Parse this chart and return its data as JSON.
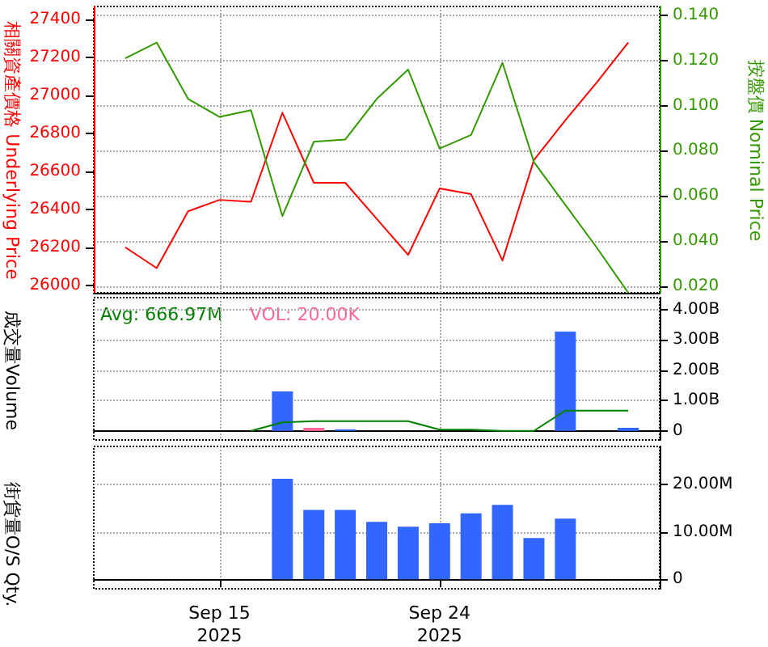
{
  "chart_data": [
    {
      "type": "line",
      "ylabel": "相關資產價格 Underlying Price",
      "y2label": "按盤價 Nominal Price",
      "categories": [
        null,
        null,
        null,
        null,
        null,
        null,
        null,
        null,
        null,
        null,
        null,
        null,
        null,
        null,
        null,
        null,
        null,
        null,
        null
      ],
      "series": [
        {
          "color": "#ff0000",
          "values": [
            null,
            26200,
            26090,
            26390,
            26450,
            26440,
            26910,
            26540,
            26540,
            26350,
            26160,
            26510,
            26480,
            26130,
            26660,
            26870,
            27070,
            27280,
            null
          ]
        },
        {
          "color": "#339900",
          "axis": "y2",
          "values": [
            null,
            0.121,
            0.128,
            0.103,
            0.095,
            0.098,
            0.051,
            0.084,
            0.085,
            0.103,
            0.116,
            0.081,
            0.087,
            0.119,
            0.075,
            0.056,
            0.037,
            0.017,
            null
          ]
        }
      ],
      "ylim": [
        25960,
        27470
      ],
      "yticks": [
        26000,
        26200,
        26400,
        26600,
        26800,
        27000,
        27200,
        27400
      ],
      "y2lim": [
        0.017,
        0.144
      ],
      "y2ticks": [
        {
          "value": 0.02,
          "label": "0.020"
        },
        {
          "value": 0.04,
          "label": "0.040"
        },
        {
          "value": 0.06,
          "label": "0.060"
        },
        {
          "value": 0.08,
          "label": "0.080"
        },
        {
          "value": 0.1,
          "label": "0.100"
        },
        {
          "value": 0.12,
          "label": "0.120"
        },
        {
          "value": 0.14,
          "label": "0.140"
        }
      ],
      "grid": true,
      "tick_labels": "y",
      "marker": "none",
      "line_style": "solid"
    },
    {
      "type": "bar",
      "ylabel": "成交量Volume",
      "annotations": [
        "Avg: 666.97M",
        "VOL: 20.00K"
      ],
      "categories": [
        null,
        null,
        null,
        null,
        null,
        null,
        null,
        null,
        null,
        null,
        null,
        null,
        null,
        null,
        null,
        null,
        null,
        null,
        null
      ],
      "series": [
        {
          "type": "line",
          "color": "#008000",
          "values": [
            null,
            null,
            null,
            null,
            null,
            0,
            280000000,
            320000000,
            320000000,
            320000000,
            320000000,
            40000000,
            40000000,
            0,
            0,
            670000000,
            670000000,
            670000000,
            null
          ]
        },
        {
          "color": "#ff6699",
          "values": [
            null,
            null,
            null,
            null,
            null,
            null,
            null,
            100000000,
            null,
            null,
            null,
            null,
            null,
            null,
            null,
            null,
            null,
            null,
            null
          ]
        },
        {
          "color": "#3366ff",
          "values": [
            null,
            null,
            null,
            null,
            null,
            null,
            1300000000,
            null,
            50000000,
            null,
            null,
            null,
            null,
            null,
            null,
            3280000000,
            null,
            100000000,
            null
          ]
        }
      ],
      "ylim": [
        -300000000,
        4400000000
      ],
      "yticks": [
        0,
        {
          "value": 1000000000,
          "label": "1.00B"
        },
        {
          "value": 2000000000,
          "label": "2.00B"
        },
        {
          "value": 3000000000,
          "label": "3.00B"
        },
        {
          "value": 4000000000,
          "label": "4.00B"
        }
      ],
      "grid": true,
      "tick_labels": "y",
      "marker": "none"
    },
    {
      "type": "bar",
      "ylabel": "街貨量O/S Qty.",
      "categories": [
        null,
        null,
        null,
        null,
        "Sep 15\n2025",
        null,
        null,
        null,
        null,
        null,
        null,
        "Sep 24\n2025",
        null,
        null,
        null,
        null,
        null,
        null,
        null
      ],
      "series": [
        {
          "color": "#3366ff",
          "values": [
            null,
            null,
            null,
            null,
            null,
            null,
            21200000,
            14600000,
            14600000,
            12100000,
            11100000,
            11800000,
            13900000,
            15700000,
            8700000,
            12800000,
            null,
            null,
            null
          ]
        }
      ],
      "ylim": [
        -2000000,
        28000000
      ],
      "yticks": [
        0,
        {
          "value": 10000000,
          "label": "10.00M"
        },
        {
          "value": 20000000,
          "label": "20.00M"
        }
      ],
      "grid": true
    }
  ]
}
